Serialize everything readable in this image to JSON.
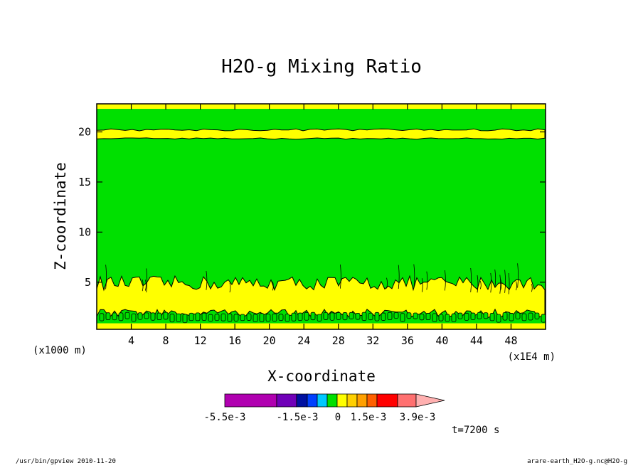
{
  "chart_data": {
    "type": "heatmap",
    "title": "H2O-g Mixing Ratio",
    "xlabel": "X-coordinate",
    "ylabel": "Z-coordinate",
    "x_unit_left": "(x1000 m)",
    "x_unit_right": "(x1E4 m)",
    "xlim": [
      0,
      52
    ],
    "ylim": [
      0.3,
      22.8
    ],
    "x_ticks": [
      4,
      8,
      12,
      16,
      20,
      24,
      28,
      32,
      36,
      40,
      44,
      48
    ],
    "y_ticks": [
      5,
      10,
      15,
      20
    ],
    "colorbar": {
      "colors": [
        "#b000b0",
        "#7000b8",
        "#0010a0",
        "#0040ff",
        "#00c8ff",
        "#00e000",
        "#ffff00",
        "#ffd000",
        "#ffa000",
        "#ff6000",
        "#ff0000",
        "#ff7070",
        "#ffb0b0"
      ],
      "labels": [
        "-5.5e-3",
        "-1.5e-3",
        "0",
        "1.5e-3",
        "3.9e-3"
      ]
    },
    "field_colors": {
      "background": "#00e000",
      "bands": "#ffff00",
      "bottom": "#ffff00"
    },
    "bands": [
      {
        "level": "upper",
        "z": [
          22.3,
          22.8
        ]
      },
      {
        "level": "mid",
        "z": [
          19.4,
          20.1
        ]
      },
      {
        "level": "low",
        "z": [
          2.3,
          4.2
        ]
      },
      {
        "level": "bottom",
        "z": [
          0.3,
          0.9
        ]
      }
    ],
    "time_label": "t=7200 s"
  },
  "footer": {
    "left": "/usr/bin/gpview  2010-11-20",
    "right": "arare-earth_H2O-g.nc@H2O-g"
  }
}
